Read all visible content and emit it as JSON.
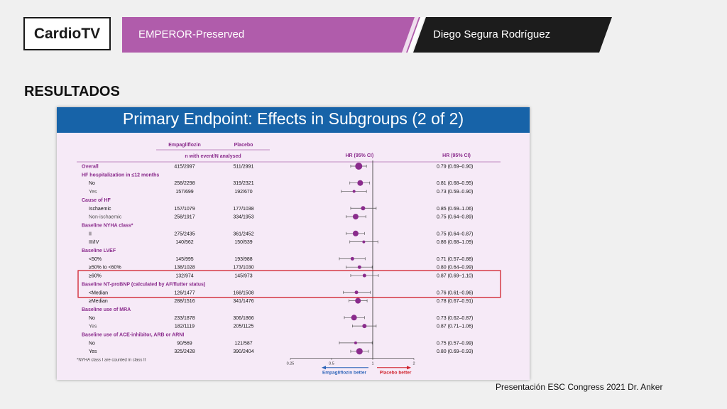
{
  "header": {
    "logo": "CardioTV",
    "title": "EMPEROR-Preserved",
    "presenter": "Diego Segura Rodríguez"
  },
  "section_title": "RESULTADOS",
  "footer": {
    "credit": "Presentación ESC Congress 2021  Dr. Anker"
  },
  "colors": {
    "banner_purple": "#b05cab",
    "banner_dark": "#1c1c1c",
    "slide_bg": "#f6eaf7",
    "slide_header": "#1763a8",
    "marker": "#8a2b8c",
    "group_label": "#8a2b8c",
    "highlight_box": "#d0202a",
    "arrow_left": "#2b63b8",
    "arrow_right": "#d0202a"
  },
  "chart_data": {
    "type": "forest",
    "title": "Primary Endpoint: Effects in Subgroups (2 of 2)",
    "columns": {
      "empa": "Empagliflozin",
      "placebo": "Placebo",
      "sub": "n with event/N analysed",
      "hr_center": "HR (95% CI)",
      "hr_right": "HR (95% CI)"
    },
    "x_scale": "log",
    "xlim": [
      0.2,
      2.6
    ],
    "ticks": [
      0.25,
      0.5,
      1,
      2
    ],
    "tick_labels": [
      "0.25",
      "0.5",
      "1",
      "2"
    ],
    "reference_line": 1,
    "left_arrow_label": "Empagliflozin better",
    "right_arrow_label": "Placebo better",
    "footnote": "*NYHA class I are counted in class II",
    "highlighted_rows": [
      13,
      15
    ],
    "rows": [
      {
        "kind": "data",
        "label": "Overall",
        "group": true,
        "empa": "415/2997",
        "placebo": "511/2991",
        "hr": 0.79,
        "lo": 0.69,
        "hi": 0.9,
        "text": "0.79 (0.69–0.90)",
        "size": 5
      },
      {
        "kind": "header",
        "label": "HF hospitalization in ≤12 months"
      },
      {
        "kind": "data",
        "label": "No",
        "empa": "258/2298",
        "placebo": "319/2321",
        "hr": 0.81,
        "lo": 0.68,
        "hi": 0.95,
        "text": "0.81 (0.68–0.95)",
        "size": 4
      },
      {
        "kind": "data",
        "label": "Yes",
        "muted": true,
        "empa": "157/699",
        "placebo": "192/670",
        "hr": 0.73,
        "lo": 0.59,
        "hi": 0.9,
        "text": "0.73 (0.59–0.90)",
        "size": 2
      },
      {
        "kind": "header",
        "label": "Cause of HF"
      },
      {
        "kind": "data",
        "label": "Ischaemic",
        "empa": "157/1079",
        "placebo": "177/1038",
        "hr": 0.85,
        "lo": 0.69,
        "hi": 1.06,
        "text": "0.85 (0.69–1.06)",
        "size": 3
      },
      {
        "kind": "data",
        "label": "Non-ischaemic",
        "muted": true,
        "empa": "258/1917",
        "placebo": "334/1953",
        "hr": 0.75,
        "lo": 0.64,
        "hi": 0.89,
        "text": "0.75 (0.64–0.89)",
        "size": 4
      },
      {
        "kind": "header",
        "label": "Baseline NYHA class*"
      },
      {
        "kind": "data",
        "label": "II",
        "empa": "275/2435",
        "placebo": "361/2452",
        "hr": 0.75,
        "lo": 0.64,
        "hi": 0.87,
        "text": "0.75 (0.64–0.87)",
        "size": 4
      },
      {
        "kind": "data",
        "label": "III/IV",
        "empa": "140/562",
        "placebo": "150/539",
        "hr": 0.86,
        "lo": 0.68,
        "hi": 1.09,
        "text": "0.86 (0.68–1.09)",
        "size": 2
      },
      {
        "kind": "header",
        "label": "Baseline LVEF"
      },
      {
        "kind": "data",
        "label": "<50%",
        "empa": "145/995",
        "placebo": "193/988",
        "hr": 0.71,
        "lo": 0.57,
        "hi": 0.88,
        "text": "0.71 (0.57–0.88)",
        "size": 2.5
      },
      {
        "kind": "data",
        "label": "≥50% to <60%",
        "empa": "138/1028",
        "placebo": "173/1030",
        "hr": 0.8,
        "lo": 0.64,
        "hi": 0.99,
        "text": "0.80 (0.64–0.99)",
        "size": 2.5
      },
      {
        "kind": "data",
        "label": "≥60%",
        "empa": "132/974",
        "placebo": "145/973",
        "hr": 0.87,
        "lo": 0.69,
        "hi": 1.1,
        "text": "0.87 (0.69–1.10)",
        "size": 2.5
      },
      {
        "kind": "header",
        "label": "Baseline NT-proBNP (calculated by AF/flutter status)"
      },
      {
        "kind": "data",
        "label": "<Median",
        "empa": "126/1477",
        "placebo": "168/1508",
        "hr": 0.76,
        "lo": 0.61,
        "hi": 0.96,
        "text": "0.76 (0.61–0.96)",
        "size": 2.5
      },
      {
        "kind": "data",
        "label": "≥Median",
        "empa": "288/1516",
        "placebo": "341/1476",
        "hr": 0.78,
        "lo": 0.67,
        "hi": 0.91,
        "text": "0.78 (0.67–0.91)",
        "size": 4
      },
      {
        "kind": "header",
        "label": "Baseline use of MRA"
      },
      {
        "kind": "data",
        "label": "No",
        "empa": "233/1878",
        "placebo": "306/1866",
        "hr": 0.73,
        "lo": 0.62,
        "hi": 0.87,
        "text": "0.73 (0.62–0.87)",
        "size": 4
      },
      {
        "kind": "data",
        "label": "Yes",
        "muted": true,
        "empa": "182/1119",
        "placebo": "205/1125",
        "hr": 0.87,
        "lo": 0.71,
        "hi": 1.06,
        "text": "0.87 (0.71–1.06)",
        "size": 3
      },
      {
        "kind": "header",
        "label": "Baseline use of ACE-inhibitor, ARB or ARNI"
      },
      {
        "kind": "data",
        "label": "No",
        "empa": "90/569",
        "placebo": "121/587",
        "hr": 0.75,
        "lo": 0.57,
        "hi": 0.99,
        "text": "0.75 (0.57–0.99)",
        "size": 2
      },
      {
        "kind": "data",
        "label": "Yes",
        "empa": "325/2428",
        "placebo": "390/2404",
        "hr": 0.8,
        "lo": 0.69,
        "hi": 0.93,
        "text": "0.80 (0.69–0.93)",
        "size": 4.5
      }
    ]
  }
}
